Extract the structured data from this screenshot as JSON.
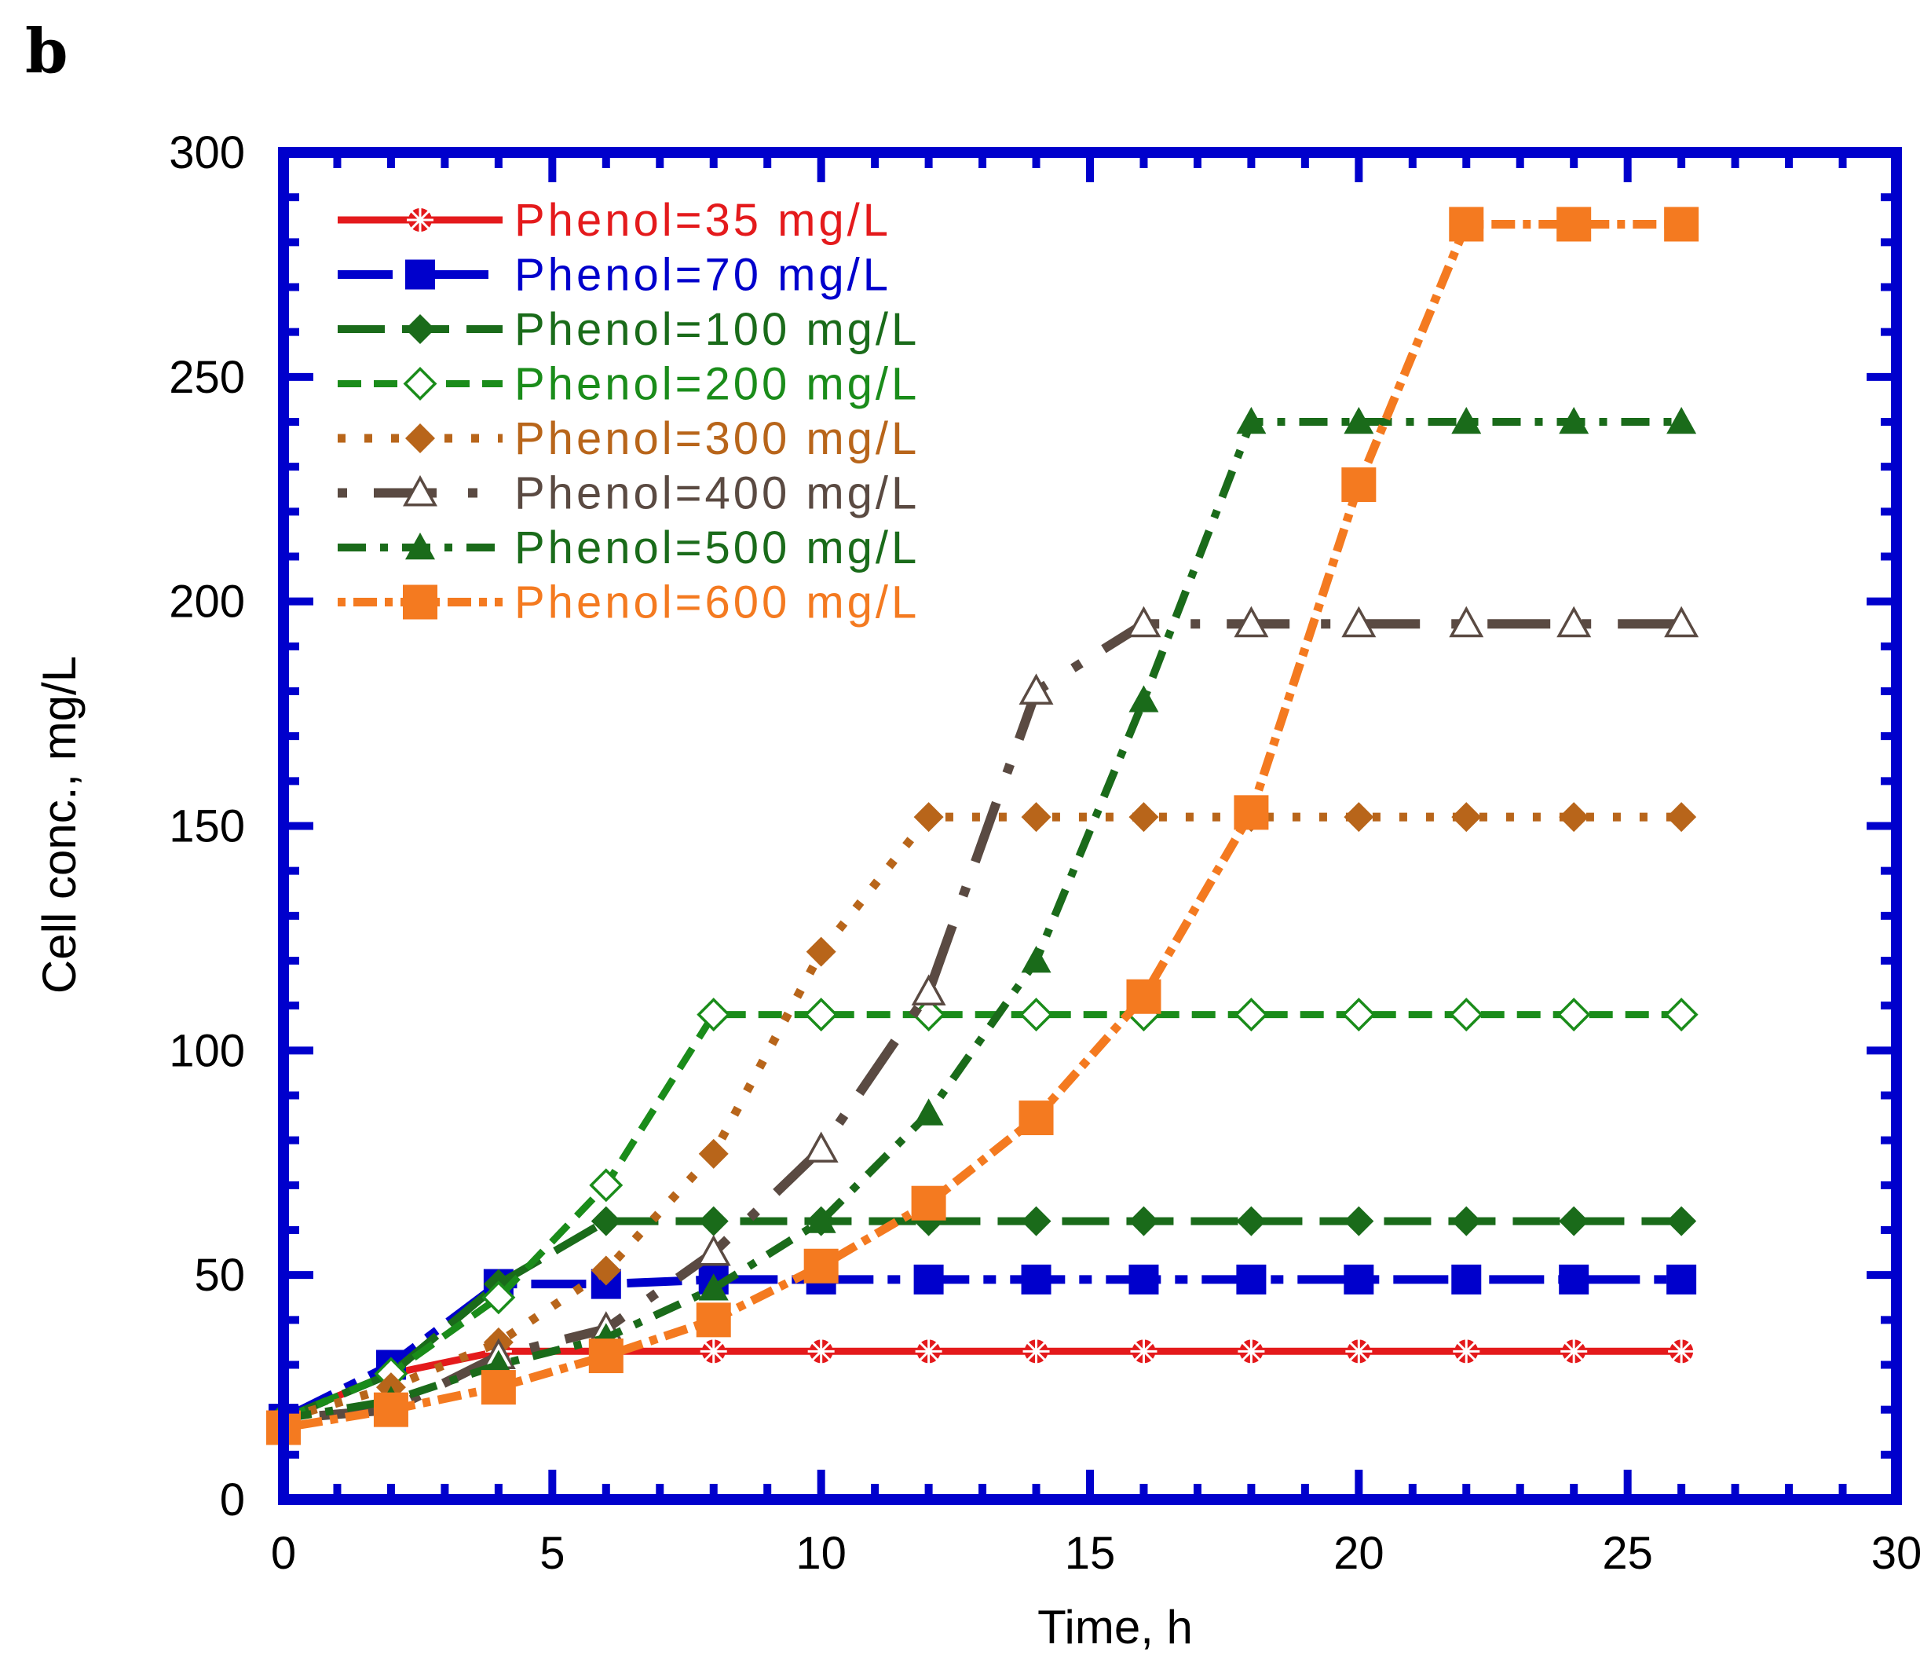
{
  "panel_label": "b",
  "chart_data": {
    "type": "line",
    "title": "",
    "xlabel": "Time, h",
    "ylabel": "Cell conc., mg/L",
    "xlim": [
      0,
      30
    ],
    "ylim": [
      0,
      300
    ],
    "x_ticks": [
      0,
      5,
      10,
      15,
      20,
      25,
      30
    ],
    "y_ticks": [
      0,
      50,
      100,
      150,
      200,
      250,
      300
    ],
    "x_tick_labels": [
      "0",
      "5",
      "10",
      "15",
      "20",
      "25",
      "30"
    ],
    "y_tick_labels": [
      "0",
      "50",
      "100",
      "150",
      "200",
      "250",
      "300"
    ],
    "grid": false,
    "frame_color": "#0000cc",
    "legend_position": "top-left",
    "x": [
      0,
      2,
      4,
      6,
      8,
      10,
      12,
      14,
      16,
      18,
      20,
      22,
      24,
      26
    ],
    "series": [
      {
        "name": "Phenol=35 mg/L",
        "color": "#e41a1c",
        "marker": "star",
        "dash": "solid",
        "values": [
          18,
          28,
          33,
          33,
          33,
          33,
          33,
          33,
          33,
          33,
          33,
          33,
          33,
          33
        ]
      },
      {
        "name": "Phenol=70 mg/L",
        "color": "#0000cc",
        "marker": "filled-square",
        "dash": "long-dash-dot",
        "values": [
          18,
          30,
          48,
          48,
          49,
          49,
          49,
          49,
          49,
          49,
          49,
          49,
          49,
          49
        ]
      },
      {
        "name": "Phenol=100 mg/L",
        "color": "#1a6b1a",
        "marker": "filled-diamond",
        "dash": "long-dash",
        "values": [
          18,
          28,
          48,
          62,
          62,
          62,
          62,
          62,
          62,
          62,
          62,
          62,
          62,
          62
        ]
      },
      {
        "name": "Phenol=200 mg/L",
        "color": "#1a8c1a",
        "marker": "open-diamond",
        "dash": "dash",
        "values": [
          18,
          28,
          45,
          70,
          108,
          108,
          108,
          108,
          108,
          108,
          108,
          108,
          108,
          108
        ]
      },
      {
        "name": "Phenol=300 mg/L",
        "color": "#b8651a",
        "marker": "filled-diamond",
        "dash": "dot",
        "values": [
          18,
          25,
          35,
          51,
          77,
          122,
          152,
          152,
          152,
          152,
          152,
          152,
          152,
          152
        ]
      },
      {
        "name": "Phenol=400 mg/L",
        "color": "#5a4a42",
        "marker": "open-triangle",
        "dash": "dot-long-dash",
        "values": [
          18,
          20,
          32,
          38,
          55,
          78,
          113,
          180,
          195,
          195,
          195,
          195,
          195,
          195
        ]
      },
      {
        "name": "Phenol=500 mg/L",
        "color": "#1a6b1a",
        "marker": "filled-triangle",
        "dash": "dash-dot",
        "values": [
          18,
          22,
          30,
          36,
          47,
          62,
          86,
          120,
          178,
          240,
          240,
          240,
          240,
          240
        ]
      },
      {
        "name": "Phenol=600 mg/L",
        "color": "#f47a20",
        "marker": "filled-square",
        "dash": "dot-dash",
        "values": [
          16,
          20,
          25,
          32,
          40,
          52,
          66,
          85,
          112,
          153,
          226,
          284,
          284,
          284
        ]
      }
    ]
  }
}
